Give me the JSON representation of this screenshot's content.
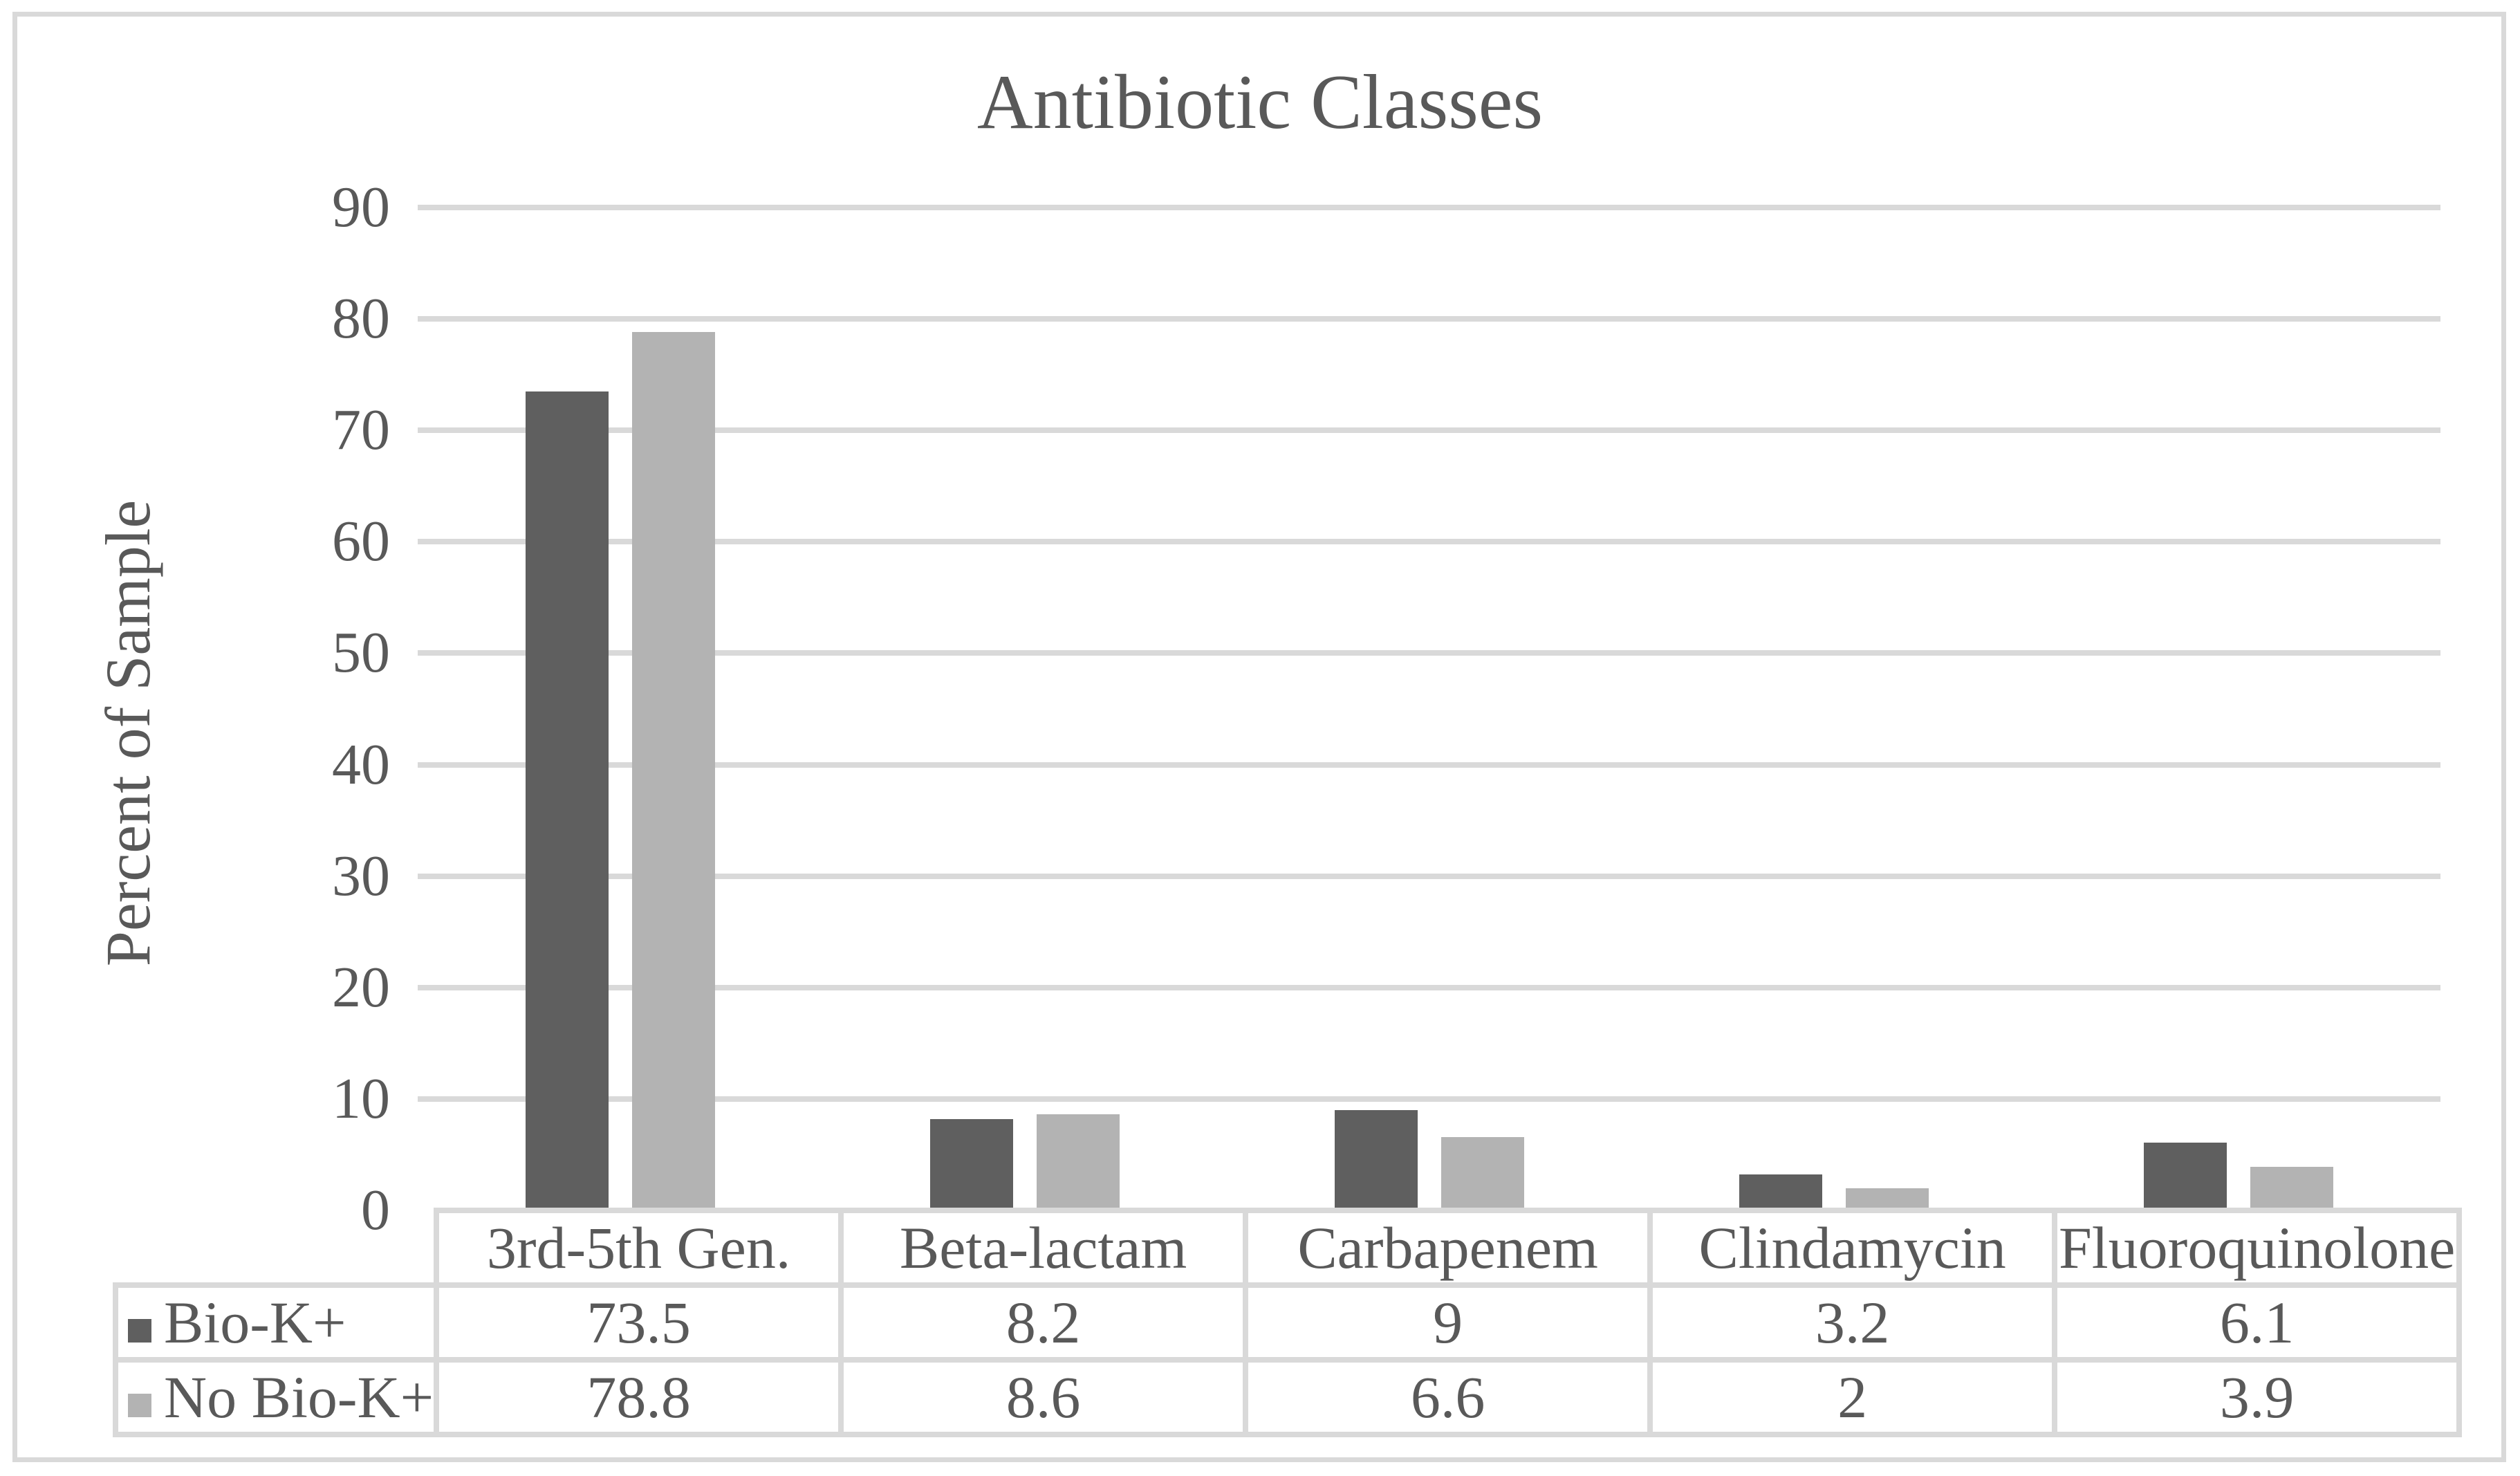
{
  "window": {
    "background_color": "#ffffff",
    "frame_color": "#d9d9d9"
  },
  "chart_data": {
    "type": "bar",
    "title": "Antibiotic Classes",
    "xlabel": "",
    "ylabel": "Percent of Sample",
    "categories": [
      "3rd-5th Gen.",
      "Beta-lactam",
      "Carbapenem",
      "Clindamycin",
      "Fluoroquinolone"
    ],
    "series": [
      {
        "name": "Bio-K+",
        "color": "#5f5f5f",
        "values": [
          73.5,
          8.2,
          9,
          3.2,
          6.1
        ]
      },
      {
        "name": "No Bio-K+",
        "color": "#b3b3b3",
        "values": [
          78.8,
          8.6,
          6.6,
          2,
          3.9
        ]
      }
    ],
    "ylim": [
      0,
      90
    ],
    "yticks": [
      90,
      80,
      70,
      60,
      50,
      40,
      30,
      20,
      10,
      0
    ],
    "grid": true,
    "gridline_color": "#d9d9d9",
    "text_color": "#595959",
    "legend_position": "data-table-left",
    "data_table_shown": true
  }
}
